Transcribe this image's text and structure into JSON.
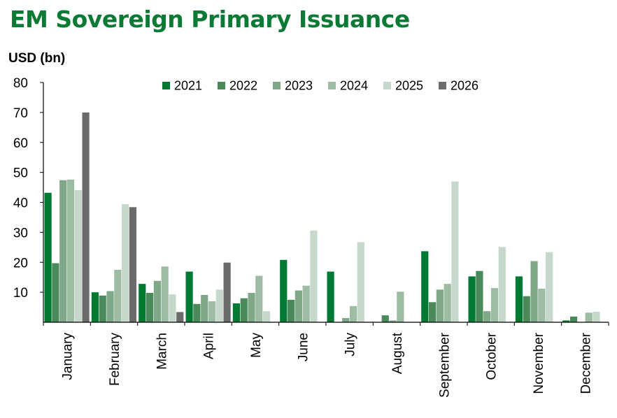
{
  "title": "EM Sovereign Primary Issuance",
  "chart_data": {
    "type": "bar",
    "title": "EM Sovereign Primary Issuance",
    "ylabel": "USD (bn)",
    "xlabel": "",
    "ylim": [
      0,
      80
    ],
    "yticks": [
      10,
      20,
      30,
      40,
      50,
      60,
      70,
      80
    ],
    "legend_position": "top",
    "categories": [
      "January",
      "February",
      "March",
      "April",
      "May",
      "June",
      "July",
      "August",
      "September",
      "October",
      "November",
      "December"
    ],
    "series": [
      {
        "name": "2021",
        "color": "#007a33",
        "values": [
          43.2,
          10.0,
          12.8,
          16.9,
          6.3,
          20.8,
          16.9,
          0,
          23.7,
          15.3,
          15.3,
          0.6
        ]
      },
      {
        "name": "2022",
        "color": "#4a8a5a",
        "values": [
          19.7,
          8.9,
          9.8,
          6.1,
          8.0,
          7.5,
          0,
          2.3,
          6.7,
          17.1,
          8.7,
          1.9
        ]
      },
      {
        "name": "2023",
        "color": "#7fa888",
        "values": [
          47.4,
          10.4,
          13.8,
          9.1,
          9.8,
          10.6,
          1.4,
          0.6,
          10.9,
          3.7,
          20.4,
          0
        ]
      },
      {
        "name": "2024",
        "color": "#9ebba4",
        "values": [
          47.6,
          17.5,
          18.6,
          7.0,
          15.5,
          12.2,
          5.4,
          10.2,
          12.8,
          11.4,
          11.2,
          3.2
        ]
      },
      {
        "name": "2025",
        "color": "#c6d8cb",
        "values": [
          44.1,
          39.4,
          9.3,
          10.9,
          3.7,
          30.6,
          26.7,
          0,
          47.0,
          25.1,
          23.4,
          3.5
        ]
      },
      {
        "name": "2026",
        "color": "#6b6b6b",
        "values": [
          70.0,
          38.4,
          3.4,
          19.9,
          0,
          0,
          0,
          0,
          0,
          0,
          0,
          0
        ]
      }
    ]
  }
}
